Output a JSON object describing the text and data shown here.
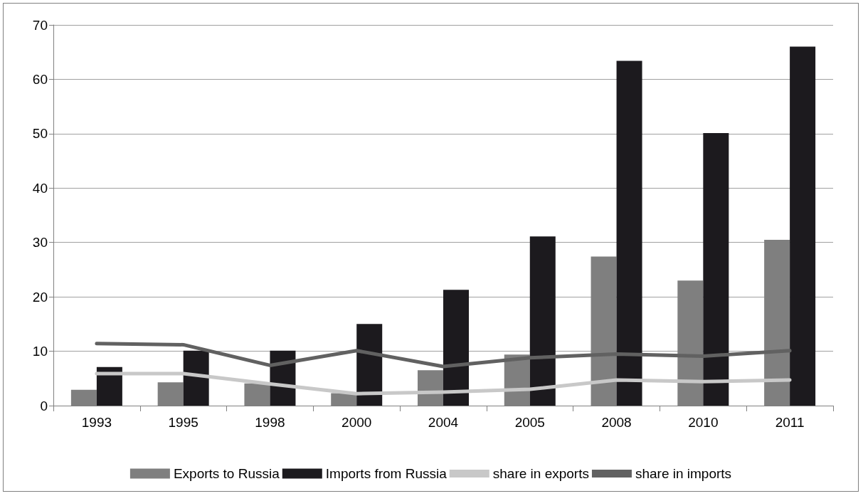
{
  "chart_data": {
    "type": "bar",
    "categories": [
      "1993",
      "1995",
      "1998",
      "2000",
      "2004",
      "2005",
      "2008",
      "2010",
      "2011"
    ],
    "series": [
      {
        "name": "Exports to Russia",
        "color": "#7f7f7f",
        "values": [
          2.9,
          4.3,
          4.1,
          2.3,
          6.5,
          9.4,
          27.4,
          23.0,
          30.5
        ]
      },
      {
        "name": "Imports from Russia",
        "color": "#1c1a1e",
        "values": [
          7.1,
          10.1,
          10.1,
          15.0,
          21.3,
          31.1,
          63.4,
          50.1,
          66.0
        ]
      },
      {
        "name": "share in exports",
        "type": "line",
        "color": "#c8c8c8",
        "values": [
          5.9,
          5.9,
          4.0,
          2.2,
          2.5,
          3.0,
          4.7,
          4.4,
          4.7
        ]
      },
      {
        "name": "share in imports",
        "type": "line",
        "color": "#616161",
        "values": [
          11.4,
          11.2,
          7.4,
          10.1,
          7.2,
          8.8,
          9.5,
          9.1,
          10.1
        ]
      }
    ],
    "ylim": [
      0,
      70
    ],
    "yticks": [
      0,
      10,
      20,
      30,
      40,
      50,
      60,
      70
    ],
    "grid": "y",
    "legend": "bottom",
    "marker": "none",
    "line_style": "solid"
  }
}
